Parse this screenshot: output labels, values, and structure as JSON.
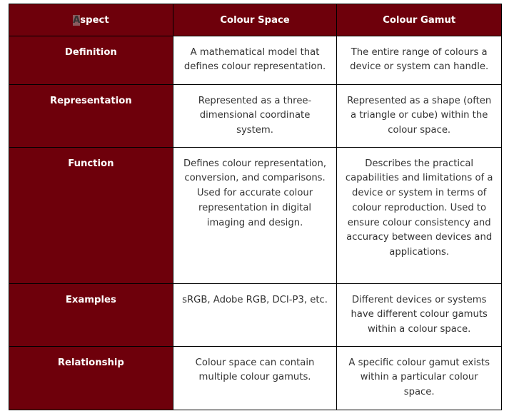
{
  "table": {
    "headers": [
      "Aspect",
      "Colour Space",
      "Colour Gamut"
    ],
    "header_first_letter": "A",
    "header_rest": "spect",
    "rows": [
      {
        "aspect": "Definition",
        "space": "A mathematical model that defines colour representation.",
        "gamut": "The entire range of colours a device or system can handle."
      },
      {
        "aspect": "Representation",
        "space": "Represented as a three-dimensional coordinate system.",
        "gamut": "Represented as a shape (often a triangle or cube) within the colour space."
      },
      {
        "aspect": "Function",
        "space": "Defines colour representation, conversion, and comparisons. Used for accurate colour representation in digital imaging and design.",
        "gamut": "Describes the practical capabilities and limitations of a device or system in terms of colour reproduction. Used to ensure colour consistency and accuracy between devices and applications."
      },
      {
        "aspect": "Examples",
        "space": "sRGB, Adobe RGB, DCI-P3, etc.",
        "gamut": "Different devices or systems have different colour gamuts within a colour space."
      },
      {
        "aspect": "Relationship",
        "space": "Colour space can contain multiple colour gamuts.",
        "gamut": "A specific colour gamut exists within a particular colour space."
      }
    ]
  },
  "colors": {
    "header_bg": "#6e000b",
    "text": "#333333"
  }
}
